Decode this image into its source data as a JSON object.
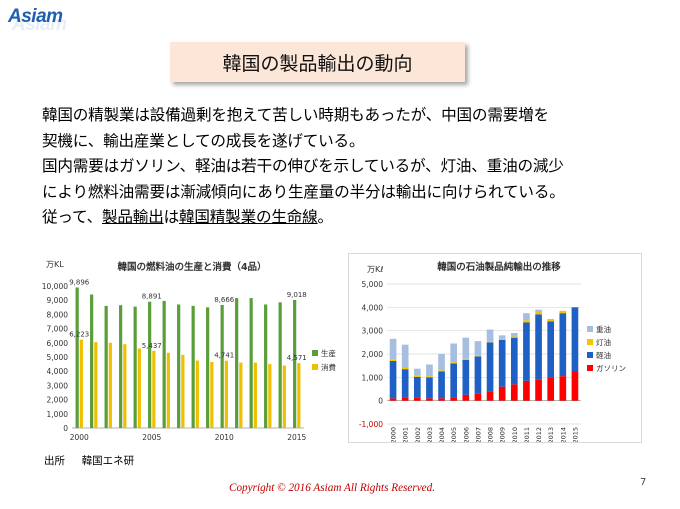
{
  "brand": {
    "name": "Asiam"
  },
  "slide": {
    "title": "韓国の製品輸出の動向",
    "paragraph": {
      "line1": "韓国の精製業は設備過剰を抱えて苦しい時期もあったが、中国の需要増を",
      "line2": "契機に、輸出産業としての成長を遂げている。",
      "line3": "国内需要はガソリン、軽油は若干の伸びを示しているが、灯油、重油の減少",
      "line4": "により燃料油需要は漸減傾向にあり生産量の半分は輸出に向けられている。",
      "line5_a": "従って、",
      "line5_b": "製品輸出",
      "line5_c": "は",
      "line5_d": "韓国精製業の生命線",
      "line5_e": "。"
    },
    "source_label": "出所",
    "source_value": "韓国エネ研",
    "copyright": "Copyright © 2016 Asiam All Rights Reserved.",
    "page_number": "7"
  },
  "chart_data": [
    {
      "type": "bar",
      "title": "韓国の燃料油の生産と消費（4品）",
      "ylabel": "万KL",
      "ylim": [
        0,
        10000
      ],
      "yticks": [
        0,
        1000,
        2000,
        3000,
        4000,
        5000,
        6000,
        7000,
        8000,
        9000,
        10000
      ],
      "x": [
        2000,
        2001,
        2002,
        2003,
        2004,
        2005,
        2006,
        2007,
        2008,
        2009,
        2010,
        2011,
        2012,
        2013,
        2014,
        2015
      ],
      "xtick_labels": [
        "2000",
        "2005",
        "2010",
        "2015"
      ],
      "series": [
        {
          "name": "生産",
          "color": "#5a9e3a",
          "values": [
            9896,
            9400,
            8600,
            8650,
            8550,
            8891,
            8950,
            8700,
            8600,
            8500,
            8666,
            9150,
            9150,
            8700,
            8850,
            9018
          ]
        },
        {
          "name": "消費",
          "color": "#f0c000",
          "values": [
            6223,
            6050,
            6000,
            5900,
            5600,
            5437,
            5300,
            5150,
            4750,
            4650,
            4741,
            4600,
            4600,
            4500,
            4400,
            4571
          ]
        }
      ],
      "data_labels": [
        {
          "series": "生産",
          "x": 2000,
          "text": "9,896"
        },
        {
          "series": "生産",
          "x": 2005,
          "text": "8,891"
        },
        {
          "series": "生産",
          "x": 2010,
          "text": "8,666"
        },
        {
          "series": "生産",
          "x": 2015,
          "text": "9,018"
        },
        {
          "series": "消費",
          "x": 2000,
          "text": "6,223"
        },
        {
          "series": "消費",
          "x": 2005,
          "text": "5,437"
        },
        {
          "series": "消費",
          "x": 2010,
          "text": "4,741"
        },
        {
          "series": "消費",
          "x": 2015,
          "text": "4,571"
        }
      ],
      "legend": "right",
      "grid": false
    },
    {
      "type": "bar",
      "stacked": true,
      "title": "韓国の石油製品純輸出の推移",
      "ylabel": "万Kℓ",
      "ylim": [
        -1000,
        5000
      ],
      "yticks": [
        -1000,
        0,
        1000,
        2000,
        3000,
        4000,
        5000
      ],
      "ytick_labels": [
        "-1,000",
        "0",
        "1,000",
        "2,000",
        "3,000",
        "4,000",
        "5,000"
      ],
      "categories": [
        "2000",
        "2001",
        "2002",
        "2003",
        "2004",
        "2005",
        "2006",
        "2007",
        "2008",
        "2009",
        "2010",
        "2011",
        "2012",
        "2013",
        "2014",
        "2015"
      ],
      "series": [
        {
          "name": "ガソリン",
          "color": "#ff0000",
          "values": [
            100,
            150,
            120,
            100,
            100,
            150,
            250,
            300,
            400,
            600,
            700,
            850,
            900,
            1000,
            1050,
            1250
          ]
        },
        {
          "name": "軽油",
          "color": "#1f60c4",
          "values": [
            1600,
            1200,
            900,
            900,
            1150,
            1450,
            1500,
            1600,
            2100,
            2000,
            2000,
            2500,
            2800,
            2400,
            2700,
            2750
          ]
        },
        {
          "name": "灯油",
          "color": "#f5c400",
          "values": [
            50,
            50,
            50,
            50,
            50,
            50,
            50,
            50,
            50,
            50,
            50,
            100,
            100,
            100,
            100,
            0
          ]
        },
        {
          "name": "重油",
          "color": "#a6bfe0",
          "values": [
            900,
            1000,
            300,
            500,
            700,
            800,
            900,
            600,
            500,
            150,
            150,
            300,
            100,
            0,
            0,
            0
          ]
        }
      ],
      "legend": "right",
      "grid": true
    }
  ]
}
